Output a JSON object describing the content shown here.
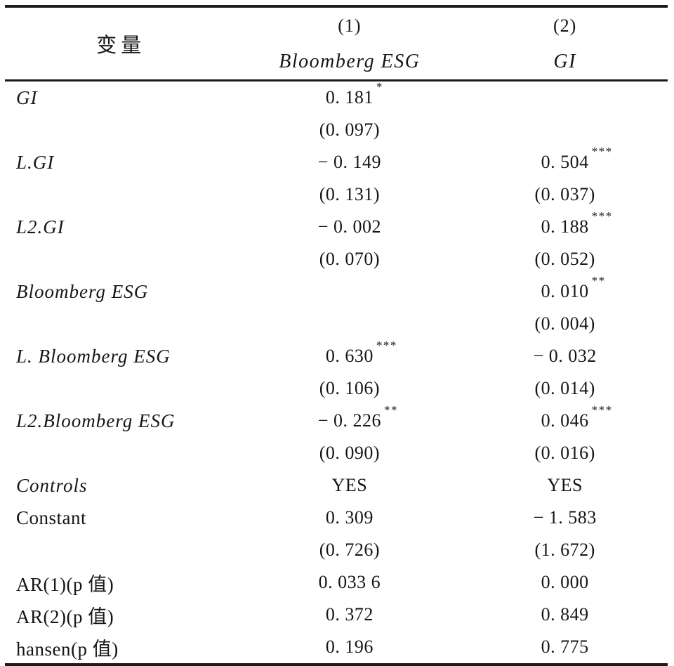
{
  "page": {
    "background_color": "#ffffff",
    "text_color": "#161616",
    "rule_color": "#1b1b1b"
  },
  "table": {
    "header": {
      "variable_label": "变量",
      "col1_number": "(1)",
      "col1_name": "Bloomberg ESG",
      "col2_number": "(2)",
      "col2_name": "GI"
    },
    "lines": [
      {
        "label": "GI",
        "italic": true,
        "c1": "0. 181",
        "c1_stars": "*",
        "c2": "",
        "c2_stars": ""
      },
      {
        "label": "",
        "italic": false,
        "c1": "(0. 097)",
        "c1_stars": "",
        "c2": "",
        "c2_stars": ""
      },
      {
        "label": "L.GI",
        "italic": true,
        "c1": "− 0. 149",
        "c1_stars": "",
        "c2": "0. 504",
        "c2_stars": "***"
      },
      {
        "label": "",
        "italic": false,
        "c1": "(0. 131)",
        "c1_stars": "",
        "c2": "(0. 037)",
        "c2_stars": ""
      },
      {
        "label": "L2.GI",
        "italic": true,
        "c1": "− 0. 002",
        "c1_stars": "",
        "c2": "0. 188",
        "c2_stars": "***"
      },
      {
        "label": "",
        "italic": false,
        "c1": "(0. 070)",
        "c1_stars": "",
        "c2": "(0. 052)",
        "c2_stars": ""
      },
      {
        "label": "Bloomberg ESG",
        "italic": true,
        "c1": "",
        "c1_stars": "",
        "c2": "0. 010",
        "c2_stars": "**"
      },
      {
        "label": "",
        "italic": false,
        "c1": "",
        "c1_stars": "",
        "c2": "(0. 004)",
        "c2_stars": ""
      },
      {
        "label": "L. Bloomberg ESG",
        "italic": true,
        "c1": "0. 630",
        "c1_stars": "***",
        "c2": "− 0. 032",
        "c2_stars": ""
      },
      {
        "label": "",
        "italic": false,
        "c1": "(0. 106)",
        "c1_stars": "",
        "c2": "(0. 014)",
        "c2_stars": ""
      },
      {
        "label": "L2.Bloomberg ESG",
        "italic": true,
        "c1": "− 0. 226",
        "c1_stars": "**",
        "c2": "0. 046",
        "c2_stars": "***"
      },
      {
        "label": "",
        "italic": false,
        "c1": "(0. 090)",
        "c1_stars": "",
        "c2": "(0. 016)",
        "c2_stars": ""
      },
      {
        "label": "Controls",
        "italic": true,
        "c1": "YES",
        "c1_stars": "",
        "c2": "YES",
        "c2_stars": ""
      },
      {
        "label": "Constant",
        "italic": false,
        "c1": "0. 309",
        "c1_stars": "",
        "c2": "− 1. 583",
        "c2_stars": ""
      },
      {
        "label": "",
        "italic": false,
        "c1": "(0. 726)",
        "c1_stars": "",
        "c2": "(1. 672)",
        "c2_stars": ""
      },
      {
        "label": "AR(1)(p 值)",
        "italic": false,
        "c1": "0. 033 6",
        "c1_stars": "",
        "c2": "0. 000",
        "c2_stars": ""
      },
      {
        "label": "AR(2)(p 值)",
        "italic": false,
        "c1": "0. 372",
        "c1_stars": "",
        "c2": "0. 849",
        "c2_stars": ""
      },
      {
        "label": "hansen(p 值)",
        "italic": false,
        "c1": "0. 196",
        "c1_stars": "",
        "c2": "0. 775",
        "c2_stars": ""
      }
    ]
  }
}
